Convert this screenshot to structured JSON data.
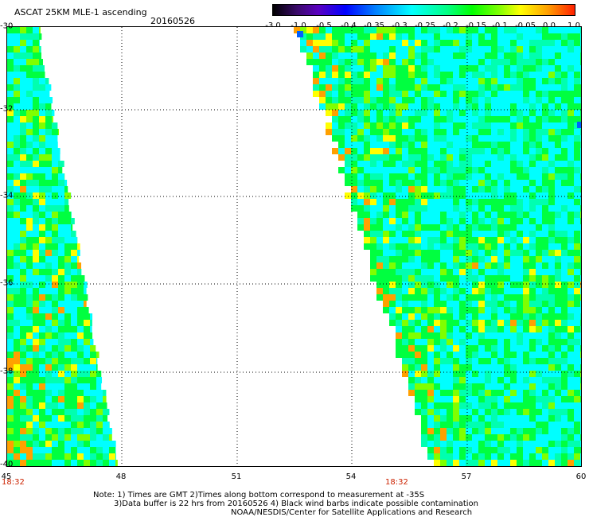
{
  "header": {
    "title": "ASCAT 25KM MLE-1 ascending",
    "date": "20160526"
  },
  "colorbar": {
    "labels": [
      "-3.0",
      "-1.0",
      "-0.5",
      "-0.4",
      "-0.35",
      "-0.3",
      "-0.25",
      "-0.2",
      "-0.15",
      "-0.1",
      "-0.05",
      "0.0",
      "1.0"
    ],
    "colors": [
      "#000000",
      "#5a00c0",
      "#0000ff",
      "#00ffff",
      "#00ff00",
      "#ffff00",
      "#ff2000"
    ]
  },
  "map": {
    "y_axis_labels": [
      "-30",
      "-32",
      "-34",
      "-36",
      "-38",
      "-40"
    ],
    "x_axis_labels": [
      "45",
      "48",
      "51",
      "54",
      "57",
      "60"
    ],
    "pass_times": [
      "18:32",
      "18:32"
    ],
    "palette": {
      "cyan": "#00ffff",
      "aqua_green": "#00ffb0",
      "green": "#00ff40",
      "lime": "#80ff00",
      "yellow": "#ffff00",
      "orange": "#ffa000",
      "blue": "#0060ff"
    }
  },
  "notes": {
    "line1": "Note: 1) Times are GMT 2)Times along bottom correspond to measurement at -35S",
    "line2": "3)Data buffer is 22 hrs from 20160526 4) Black wind barbs indicate possible contamination",
    "line3": "NOAA/NESDIS/Center for Satellite Applications and Research"
  }
}
